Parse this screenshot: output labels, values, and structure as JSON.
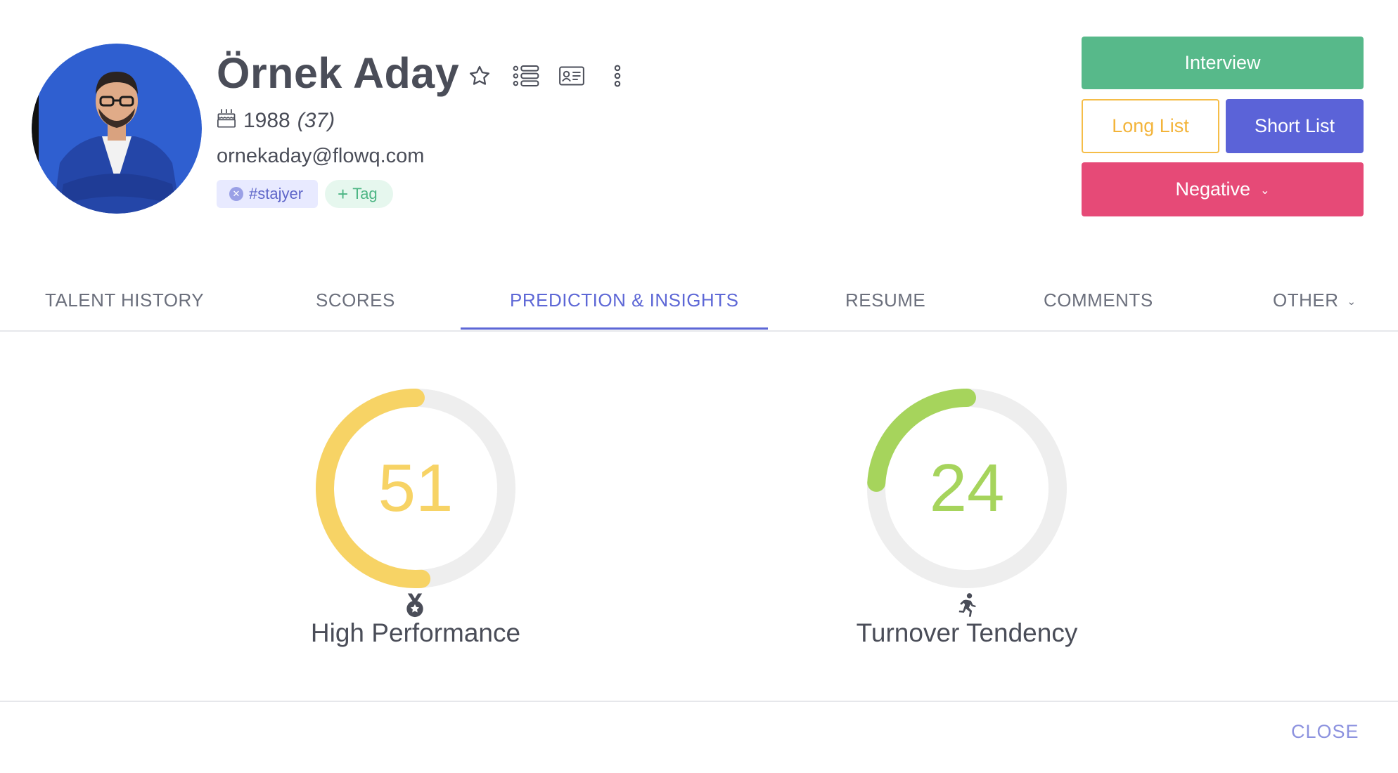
{
  "candidate": {
    "name": "Örnek Aday",
    "birth_year": "1988",
    "age": "(37)",
    "email": "ornekaday@flowq.com",
    "tags": [
      "#stajyer"
    ],
    "add_tag_label": "Tag"
  },
  "header_icons": [
    "star-icon",
    "list-view-icon",
    "id-card-icon",
    "more-vertical-icon"
  ],
  "actions": {
    "interview": "Interview",
    "long_list": "Long List",
    "short_list": "Short List",
    "negative": "Negative"
  },
  "tabs": [
    {
      "label": "TALENT HISTORY",
      "active": false
    },
    {
      "label": "SCORES",
      "active": false
    },
    {
      "label": "PREDICTION & INSIGHTS",
      "active": true
    },
    {
      "label": "RESUME",
      "active": false
    },
    {
      "label": "COMMENTS",
      "active": false
    },
    {
      "label": "OTHER",
      "active": false
    }
  ],
  "insights": [
    {
      "label": "High Performance",
      "value": "51",
      "progress": 0.51,
      "color": "#f7d365",
      "icon": "medal-icon"
    },
    {
      "label": "Turnover Tendency",
      "value": "24",
      "progress": 0.24,
      "color": "#a6d45c",
      "icon": "running-person-icon"
    }
  ],
  "colors": {
    "accent": "#5d67d6",
    "interview": "#57b98a",
    "long_list": "#f3b43a",
    "short_list": "#5b63d8",
    "negative": "#e64a77",
    "gauge_track": "#eeeeee"
  },
  "footer": {
    "close_label": "CLOSE"
  }
}
